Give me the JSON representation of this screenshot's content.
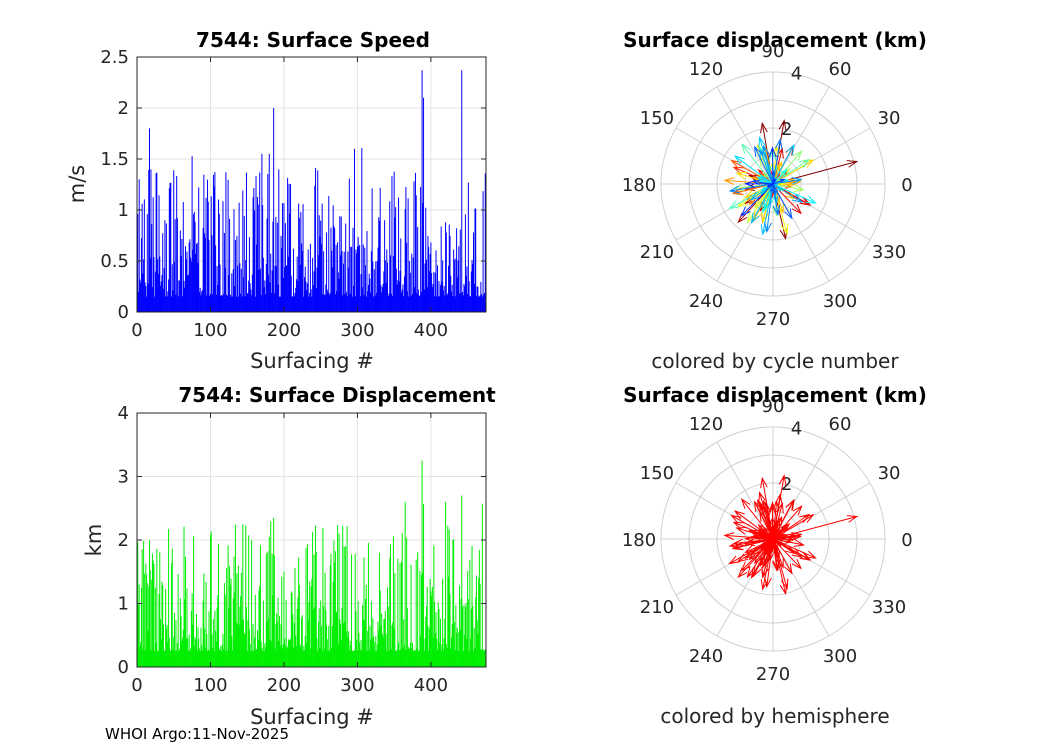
{
  "footer": "WHOI Argo:11-Nov-2025",
  "chart_data": [
    {
      "id": "speed",
      "type": "bar",
      "title": "7544: Surface Speed",
      "xlabel": "Surfacing #",
      "ylabel": "m/s",
      "xlim": [
        0,
        475
      ],
      "ylim": [
        0,
        2.5
      ],
      "xticks": [
        0,
        100,
        200,
        300,
        400
      ],
      "yticks": [
        0,
        0.5,
        1,
        1.5,
        2,
        2.5
      ],
      "ytick_labels": [
        "0",
        "0.5",
        "1",
        "1.5",
        "2",
        "2.5"
      ],
      "grid": true,
      "color": "#0000ff",
      "n_points": 475,
      "peaks": [
        [
          3,
          1.3
        ],
        [
          17,
          1.8
        ],
        [
          19,
          1.4
        ],
        [
          170,
          1.55
        ],
        [
          180,
          1.55
        ],
        [
          186,
          2.0
        ],
        [
          296,
          1.6
        ],
        [
          388,
          2.37
        ],
        [
          390,
          2.1
        ],
        [
          442,
          2.37
        ]
      ]
    },
    {
      "id": "displacement",
      "type": "bar",
      "title": "7544: Surface Displacement",
      "xlabel": "Surfacing #",
      "ylabel": "km",
      "xlim": [
        0,
        475
      ],
      "ylim": [
        0,
        4
      ],
      "xticks": [
        0,
        100,
        200,
        300,
        400
      ],
      "yticks": [
        0,
        1,
        2,
        3,
        4
      ],
      "ytick_labels": [
        "0",
        "1",
        "2",
        "3",
        "4"
      ],
      "grid": true,
      "color": "#00ee00",
      "n_points": 475,
      "peaks": [
        [
          3,
          1.3
        ],
        [
          17,
          2.0
        ],
        [
          186,
          2.35
        ],
        [
          180,
          2.05
        ],
        [
          275,
          2.1
        ],
        [
          330,
          1.8
        ],
        [
          365,
          2.6
        ],
        [
          388,
          3.25
        ],
        [
          420,
          2.6
        ],
        [
          442,
          2.7
        ]
      ]
    },
    {
      "id": "polar_cycle",
      "type": "polar",
      "title": "Surface displacement (km)",
      "caption": "colored by cycle number",
      "r_ticks": [
        "2",
        "4"
      ],
      "r_max": 4,
      "angle_labels": [
        "0",
        "30",
        "60",
        "90",
        "120",
        "150",
        "180",
        "210",
        "240",
        "270",
        "300",
        "330"
      ],
      "color_mode": "cycle",
      "major_vectors": [
        [
          15,
          3.1
        ],
        [
          80,
          2.3
        ],
        [
          100,
          2.2
        ],
        [
          283,
          2.0
        ],
        [
          190,
          1.0
        ],
        [
          160,
          0.9
        ],
        [
          330,
          1.5
        ],
        [
          215,
          1.2
        ]
      ]
    },
    {
      "id": "polar_hemi",
      "type": "polar",
      "title": "Surface displacement (km)",
      "caption": "colored by hemisphere",
      "r_ticks": [
        "2",
        "4"
      ],
      "r_max": 4,
      "angle_labels": [
        "0",
        "30",
        "60",
        "90",
        "120",
        "150",
        "180",
        "210",
        "240",
        "270",
        "300",
        "330"
      ],
      "color_mode": "hemisphere",
      "color": "#ff0000",
      "major_vectors": [
        [
          15,
          3.1
        ],
        [
          80,
          2.3
        ],
        [
          100,
          2.2
        ],
        [
          283,
          2.0
        ],
        [
          190,
          1.0
        ],
        [
          160,
          0.9
        ],
        [
          330,
          1.5
        ],
        [
          215,
          1.2
        ]
      ]
    }
  ]
}
